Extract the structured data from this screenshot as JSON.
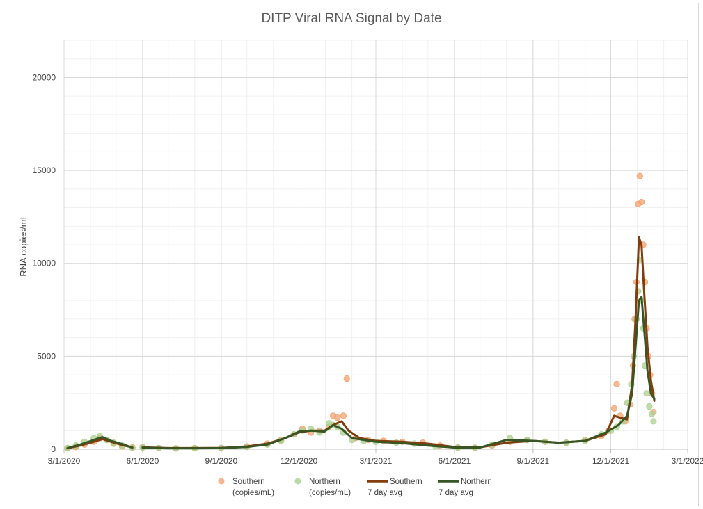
{
  "chart_data": {
    "type": "scatter",
    "title": "DITP Viral RNA Signal by Date",
    "xlabel": "",
    "ylabel": "RNA copies/mL",
    "xlim": [
      "3/1/2020",
      "3/1/2022"
    ],
    "ylim": [
      0,
      22000
    ],
    "x_ticks": [
      "3/1/2020",
      "6/1/2020",
      "9/1/2020",
      "12/1/2020",
      "3/1/2021",
      "6/1/2021",
      "9/1/2021",
      "12/1/2021",
      "3/1/2022"
    ],
    "y_ticks": [
      0,
      5000,
      10000,
      15000,
      20000
    ],
    "grid": true,
    "legend_position": "bottom",
    "series": [
      {
        "name": "Southern (copies/mL)",
        "kind": "scatter",
        "color": "#f4a26d",
        "points": [
          [
            "3/5/2020",
            50
          ],
          [
            "3/15/2020",
            120
          ],
          [
            "3/25/2020",
            250
          ],
          [
            "4/5/2020",
            400
          ],
          [
            "4/12/2020",
            600
          ],
          [
            "4/20/2020",
            500
          ],
          [
            "4/28/2020",
            300
          ],
          [
            "5/8/2020",
            150
          ],
          [
            "5/20/2020",
            100
          ],
          [
            "6/1/2020",
            120
          ],
          [
            "6/20/2020",
            60
          ],
          [
            "7/10/2020",
            50
          ],
          [
            "8/1/2020",
            60
          ],
          [
            "9/1/2020",
            70
          ],
          [
            "10/1/2020",
            150
          ],
          [
            "10/25/2020",
            300
          ],
          [
            "11/10/2020",
            500
          ],
          [
            "11/25/2020",
            800
          ],
          [
            "12/5/2020",
            1100
          ],
          [
            "12/15/2020",
            900
          ],
          [
            "12/25/2020",
            1000
          ],
          [
            "1/5/2021",
            1200
          ],
          [
            "1/10/2021",
            1800
          ],
          [
            "1/15/2021",
            1700
          ],
          [
            "1/22/2021",
            1800
          ],
          [
            "1/26/2021",
            3800
          ],
          [
            "2/5/2021",
            600
          ],
          [
            "2/20/2021",
            500
          ],
          [
            "3/10/2021",
            450
          ],
          [
            "4/1/2021",
            400
          ],
          [
            "4/25/2021",
            350
          ],
          [
            "5/15/2021",
            200
          ],
          [
            "6/5/2021",
            100
          ],
          [
            "6/25/2021",
            80
          ],
          [
            "7/15/2021",
            200
          ],
          [
            "8/5/2021",
            400
          ],
          [
            "8/25/2021",
            500
          ],
          [
            "9/15/2021",
            400
          ],
          [
            "10/10/2021",
            350
          ],
          [
            "11/1/2021",
            500
          ],
          [
            "11/20/2021",
            700
          ],
          [
            "11/28/2021",
            1000
          ],
          [
            "12/5/2021",
            2200
          ],
          [
            "12/8/2021",
            3500
          ],
          [
            "12/12/2021",
            1800
          ],
          [
            "12/18/2021",
            1500
          ],
          [
            "12/24/2021",
            2400
          ],
          [
            "12/27/2021",
            4500
          ],
          [
            "12/29/2021",
            7000
          ],
          [
            "12/31/2021",
            9000
          ],
          [
            "1/2/2022",
            13200
          ],
          [
            "1/4/2022",
            14700
          ],
          [
            "1/6/2022",
            13300
          ],
          [
            "1/8/2022",
            11000
          ],
          [
            "1/10/2022",
            9000
          ],
          [
            "1/12/2022",
            6500
          ],
          [
            "1/14/2022",
            5000
          ],
          [
            "1/16/2022",
            4000
          ],
          [
            "1/18/2022",
            3000
          ],
          [
            "1/20/2022",
            2000
          ]
        ]
      },
      {
        "name": "Northern (copies/mL)",
        "kind": "scatter",
        "color": "#a9d18e",
        "points": [
          [
            "3/5/2020",
            60
          ],
          [
            "3/15/2020",
            200
          ],
          [
            "3/25/2020",
            400
          ],
          [
            "4/5/2020",
            600
          ],
          [
            "4/12/2020",
            700
          ],
          [
            "4/20/2020",
            500
          ],
          [
            "4/28/2020",
            350
          ],
          [
            "5/8/2020",
            200
          ],
          [
            "5/20/2020",
            80
          ],
          [
            "6/1/2020",
            90
          ],
          [
            "6/20/2020",
            60
          ],
          [
            "7/10/2020",
            40
          ],
          [
            "8/1/2020",
            50
          ],
          [
            "9/1/2020",
            60
          ],
          [
            "10/1/2020",
            120
          ],
          [
            "10/25/2020",
            250
          ],
          [
            "11/10/2020",
            450
          ],
          [
            "11/25/2020",
            800
          ],
          [
            "12/5/2020",
            1000
          ],
          [
            "12/15/2020",
            1100
          ],
          [
            "12/25/2020",
            900
          ],
          [
            "1/5/2021",
            1400
          ],
          [
            "1/10/2021",
            1300
          ],
          [
            "1/15/2021",
            1200
          ],
          [
            "1/22/2021",
            900
          ],
          [
            "2/1/2021",
            500
          ],
          [
            "2/15/2021",
            450
          ],
          [
            "3/1/2021",
            400
          ],
          [
            "3/25/2021",
            350
          ],
          [
            "4/15/2021",
            300
          ],
          [
            "5/10/2021",
            150
          ],
          [
            "6/5/2021",
            80
          ],
          [
            "6/25/2021",
            70
          ],
          [
            "7/15/2021",
            250
          ],
          [
            "8/5/2021",
            600
          ],
          [
            "8/25/2021",
            500
          ],
          [
            "9/15/2021",
            400
          ],
          [
            "10/10/2021",
            350
          ],
          [
            "11/1/2021",
            450
          ],
          [
            "11/20/2021",
            800
          ],
          [
            "12/1/2021",
            1000
          ],
          [
            "12/8/2021",
            1200
          ],
          [
            "12/15/2021",
            1500
          ],
          [
            "12/20/2021",
            2500
          ],
          [
            "12/25/2021",
            3500
          ],
          [
            "12/28/2021",
            5000
          ],
          [
            "12/31/2021",
            7000
          ],
          [
            "1/2/2022",
            8500
          ],
          [
            "1/4/2022",
            10200
          ],
          [
            "1/6/2022",
            8000
          ],
          [
            "1/8/2022",
            6500
          ],
          [
            "1/10/2022",
            4500
          ],
          [
            "1/12/2022",
            3000
          ],
          [
            "1/15/2022",
            2300
          ],
          [
            "1/18/2022",
            1900
          ],
          [
            "1/20/2022",
            1500
          ]
        ]
      },
      {
        "name": "Southern 7 day avg",
        "kind": "line",
        "color": "#843c0c",
        "segments": [
          [
            [
              "3/5/2020",
              50
            ],
            [
              "3/20/2020",
              200
            ],
            [
              "4/5/2020",
              400
            ],
            [
              "4/15/2020",
              550
            ],
            [
              "4/25/2020",
              400
            ],
            [
              "5/10/2020",
              200
            ],
            [
              "5/20/2020",
              100
            ]
          ],
          [
            [
              "6/1/2020",
              100
            ],
            [
              "7/1/2020",
              60
            ],
            [
              "8/1/2020",
              60
            ],
            [
              "9/1/2020",
              70
            ],
            [
              "10/1/2020",
              150
            ],
            [
              "10/25/2020",
              300
            ],
            [
              "11/15/2020",
              600
            ],
            [
              "12/1/2020",
              900
            ],
            [
              "12/15/2020",
              1000
            ],
            [
              "12/31/2020",
              1000
            ],
            [
              "1/10/2021",
              1300
            ],
            [
              "1/20/2021",
              1500
            ],
            [
              "1/28/2021",
              1000
            ],
            [
              "2/10/2021",
              600
            ],
            [
              "3/1/2021",
              450
            ],
            [
              "4/1/2021",
              400
            ],
            [
              "5/1/2021",
              300
            ],
            [
              "6/1/2021",
              120
            ],
            [
              "7/1/2021",
              100
            ],
            [
              "8/1/2021",
              350
            ],
            [
              "9/1/2021",
              450
            ],
            [
              "10/1/2021",
              350
            ],
            [
              "11/1/2021",
              450
            ],
            [
              "11/25/2021",
              800
            ],
            [
              "12/5/2021",
              1800
            ],
            [
              "12/12/2021",
              1700
            ],
            [
              "12/20/2021",
              1600
            ],
            [
              "12/26/2021",
              3500
            ],
            [
              "12/30/2021",
              7000
            ],
            [
              "1/3/2022",
              11400
            ],
            [
              "1/6/2022",
              11000
            ],
            [
              "1/9/2022",
              8500
            ],
            [
              "1/13/2022",
              5500
            ],
            [
              "1/17/2022",
              3700
            ],
            [
              "1/21/2022",
              2600
            ]
          ]
        ]
      },
      {
        "name": "Northern 7 day avg",
        "kind": "line",
        "color": "#375623",
        "segments": [
          [
            [
              "3/5/2020",
              60
            ],
            [
              "3/20/2020",
              250
            ],
            [
              "4/5/2020",
              500
            ],
            [
              "4/15/2020",
              650
            ],
            [
              "4/25/2020",
              450
            ],
            [
              "5/10/2020",
              250
            ],
            [
              "5/20/2020",
              80
            ]
          ],
          [
            [
              "6/1/2020",
              90
            ],
            [
              "7/1/2020",
              50
            ],
            [
              "8/1/2020",
              50
            ],
            [
              "9/1/2020",
              60
            ],
            [
              "10/1/2020",
              120
            ],
            [
              "10/25/2020",
              250
            ],
            [
              "11/15/2020",
              600
            ],
            [
              "12/1/2020",
              950
            ],
            [
              "12/15/2020",
              1000
            ],
            [
              "12/31/2020",
              950
            ],
            [
              "1/10/2021",
              1300
            ],
            [
              "1/20/2021",
              1100
            ],
            [
              "2/1/2021",
              600
            ],
            [
              "3/1/2021",
              400
            ],
            [
              "4/1/2021",
              330
            ],
            [
              "5/1/2021",
              200
            ],
            [
              "6/1/2021",
              90
            ],
            [
              "7/1/2021",
              90
            ],
            [
              "8/1/2021",
              500
            ],
            [
              "9/1/2021",
              450
            ],
            [
              "10/1/2021",
              350
            ],
            [
              "11/1/2021",
              450
            ],
            [
              "11/25/2021",
              900
            ],
            [
              "12/10/2021",
              1300
            ],
            [
              "12/20/2021",
              1800
            ],
            [
              "12/26/2021",
              3000
            ],
            [
              "12/30/2021",
              5500
            ],
            [
              "1/3/2022",
              8000
            ],
            [
              "1/6/2022",
              8200
            ],
            [
              "1/9/2022",
              6500
            ],
            [
              "1/13/2022",
              4200
            ],
            [
              "1/17/2022",
              3000
            ],
            [
              "1/21/2022",
              2700
            ]
          ]
        ]
      }
    ]
  },
  "legend": [
    {
      "line1": "Southern",
      "line2": "(copies/mL)",
      "marker": "dot",
      "color": "#f4a26d"
    },
    {
      "line1": "Northern",
      "line2": "(copies/mL)",
      "marker": "dot",
      "color": "#a9d18e"
    },
    {
      "line1": "Southern",
      "line2": "7 day avg",
      "marker": "line",
      "color": "#843c0c"
    },
    {
      "line1": "Northern",
      "line2": "7 day avg",
      "marker": "line",
      "color": "#375623"
    }
  ]
}
